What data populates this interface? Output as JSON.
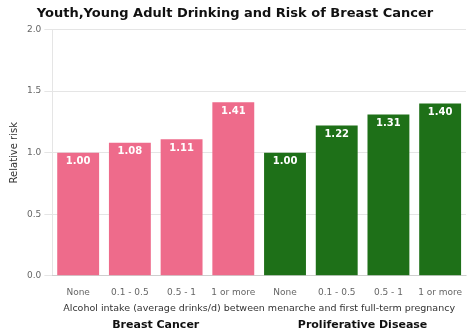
{
  "chart_data": {
    "type": "bar",
    "title": "Youth,Young Adult Drinking and Risk of Breast Cancer",
    "xlabel": "Alcohol intake (average drinks/d) between menarche and first full-term pregnancy",
    "ylabel": "Relative risk",
    "categories": [
      "None",
      "0.1 - 0.5",
      "0.5 - 1",
      "1 or more",
      "None",
      "0.1 - 0.5",
      "0.5 - 1",
      "1 or more"
    ],
    "series": [
      {
        "name": "Breast Cancer",
        "color": "#EE6B8B",
        "values": [
          1.0,
          1.08,
          1.11,
          1.41,
          null,
          null,
          null,
          null
        ],
        "value_labels": [
          "1.00",
          "1.08",
          "1.11",
          "1.41",
          null,
          null,
          null,
          null
        ]
      },
      {
        "name": "Proliferative Disease",
        "color": "#1E7018",
        "values": [
          null,
          null,
          null,
          null,
          1.0,
          1.22,
          1.31,
          1.4
        ],
        "value_labels": [
          null,
          null,
          null,
          null,
          "1.00",
          "1.22",
          "1.31",
          "1.40"
        ]
      }
    ],
    "ylim": [
      0.0,
      2.0
    ],
    "yticks": [
      {
        "value": 0,
        "label": "0.0"
      },
      0.5,
      {
        "value": 1,
        "label": "1.0"
      },
      1.5,
      {
        "value": 2,
        "label": "2.0"
      }
    ],
    "grid": true,
    "data_labels": true
  }
}
